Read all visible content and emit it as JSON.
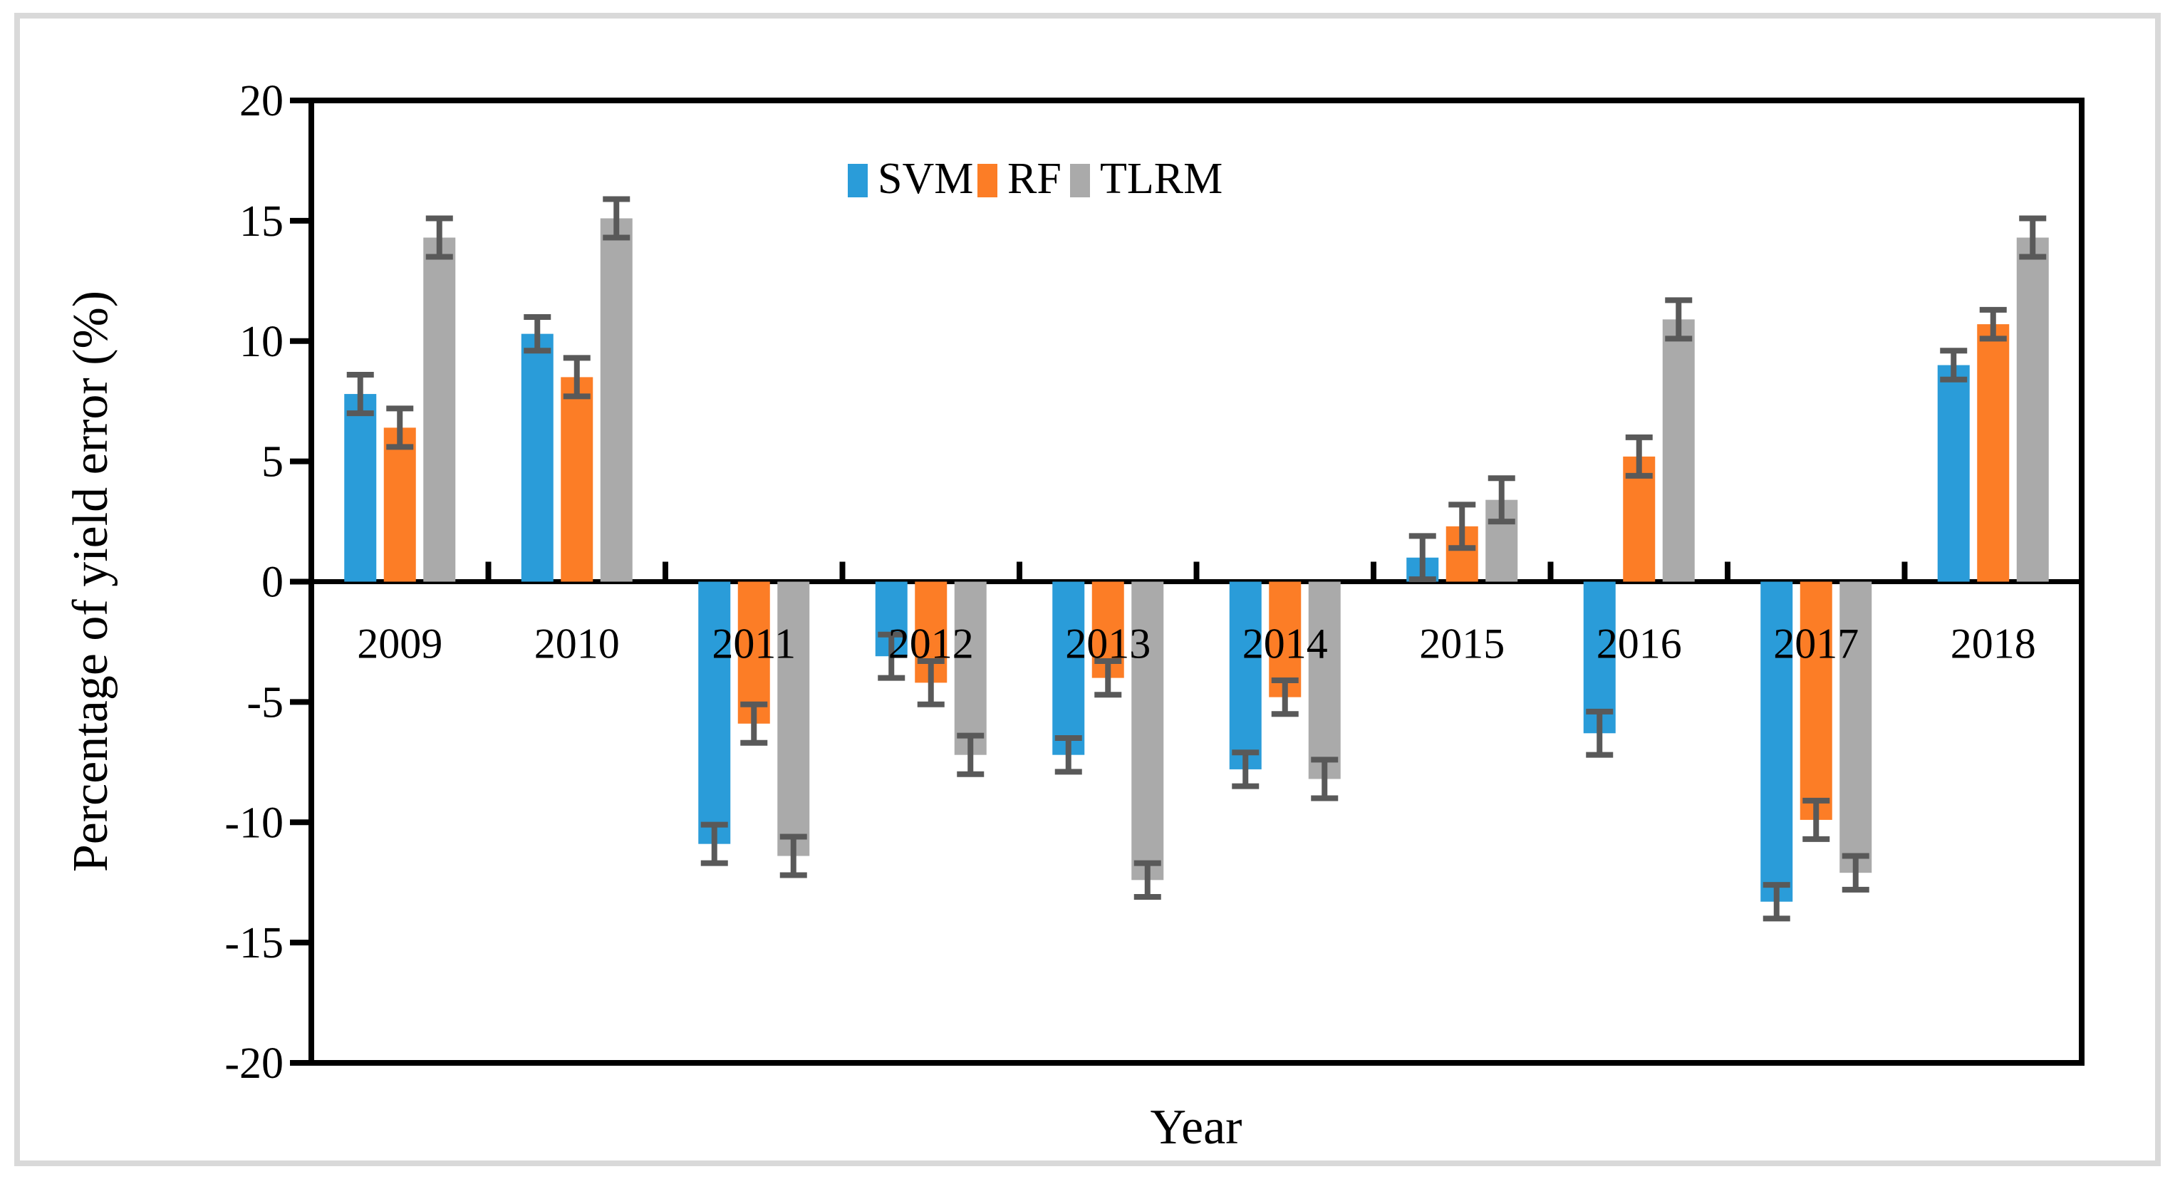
{
  "chart_data": {
    "type": "bar",
    "title": "",
    "xlabel": "Year",
    "ylabel": "Percentage of yield error (%)",
    "categories": [
      "2009",
      "2010",
      "2011",
      "2012",
      "2013",
      "2014",
      "2015",
      "2016",
      "2017",
      "2018"
    ],
    "series": [
      {
        "name": "SVM",
        "color": "#2A9CD9",
        "values": [
          7.8,
          10.3,
          -10.9,
          -3.1,
          -7.2,
          -7.8,
          1.0,
          -6.3,
          -13.3,
          9.0
        ],
        "errors": [
          0.8,
          0.7,
          0.8,
          0.9,
          0.7,
          0.7,
          0.9,
          0.9,
          0.7,
          0.6
        ]
      },
      {
        "name": "RF",
        "color": "#FC7D26",
        "values": [
          6.4,
          8.5,
          -5.9,
          -4.2,
          -4.0,
          -4.8,
          2.3,
          5.2,
          -9.9,
          10.7
        ],
        "errors": [
          0.8,
          0.8,
          0.8,
          0.9,
          0.7,
          0.7,
          0.9,
          0.8,
          0.8,
          0.6
        ]
      },
      {
        "name": "TLRM",
        "color": "#AAAAAA",
        "values": [
          14.3,
          15.1,
          -11.4,
          -7.2,
          -12.4,
          -8.2,
          3.4,
          10.9,
          -12.1,
          14.3
        ],
        "errors": [
          0.8,
          0.8,
          0.8,
          0.8,
          0.7,
          0.8,
          0.9,
          0.8,
          0.7,
          0.8
        ]
      }
    ],
    "ylim": [
      -20,
      20
    ],
    "ytick_step": 5,
    "ytick_labels": [
      "20",
      "15",
      "10",
      "5",
      "0",
      "-5",
      "-10",
      "-15",
      "-20"
    ],
    "legend_position": "top-center",
    "grid": false,
    "error_bar_color": "#595959",
    "axis_color": "#000000",
    "frame_border_color": "#d9d9d9"
  }
}
